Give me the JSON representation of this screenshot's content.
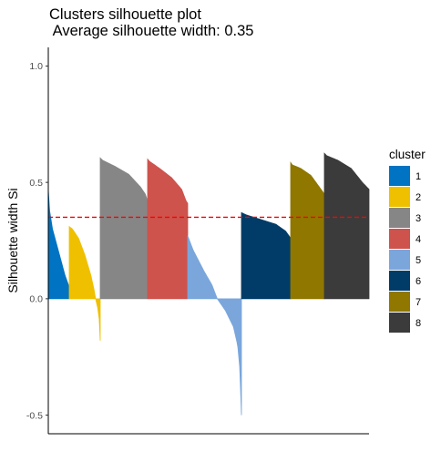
{
  "chart_data": {
    "type": "area",
    "title": "Clusters silhouette plot",
    "subtitle": " Average silhouette width: 0.35",
    "ylabel": "Silhouette width Si",
    "xlabel": "",
    "ylim": [
      -0.58,
      1.08
    ],
    "yticks": [
      {
        "value": 1.0,
        "label": "1.0"
      },
      {
        "value": 0.5,
        "label": "0.5"
      },
      {
        "value": 0.0,
        "label": "0.0"
      },
      {
        "value": -0.5,
        "label": "-0.5"
      }
    ],
    "average_silhouette_width": 0.35,
    "average_line_color": "#FF0000",
    "grid": false,
    "legend": {
      "title": "cluster",
      "position": "right"
    },
    "series": [
      {
        "name": "1",
        "color": "#0073C2",
        "profile": [
          [
            0,
            0.47
          ],
          [
            0.06,
            0.38
          ],
          [
            0.2,
            0.3
          ],
          [
            0.5,
            0.2
          ],
          [
            0.8,
            0.1
          ],
          [
            1,
            0.05
          ]
        ]
      },
      {
        "name": "2",
        "color": "#EFC000",
        "profile": [
          [
            0,
            0.31
          ],
          [
            0.1,
            0.3
          ],
          [
            0.3,
            0.26
          ],
          [
            0.5,
            0.19
          ],
          [
            0.7,
            0.1
          ],
          [
            0.8,
            0.04
          ],
          [
            0.85,
            0.0
          ],
          [
            0.92,
            -0.04
          ],
          [
            0.97,
            -0.09
          ],
          [
            1,
            -0.18
          ]
        ]
      },
      {
        "name": "3",
        "color": "#868686",
        "profile": [
          [
            0,
            0.605
          ],
          [
            0.05,
            0.595
          ],
          [
            0.3,
            0.57
          ],
          [
            0.6,
            0.535
          ],
          [
            0.85,
            0.48
          ],
          [
            0.95,
            0.45
          ],
          [
            1,
            0.42
          ]
        ]
      },
      {
        "name": "4",
        "color": "#CD534C",
        "profile": [
          [
            0,
            0.6
          ],
          [
            0.05,
            0.59
          ],
          [
            0.3,
            0.56
          ],
          [
            0.6,
            0.52
          ],
          [
            0.85,
            0.47
          ],
          [
            0.96,
            0.42
          ],
          [
            1,
            0.41
          ]
        ]
      },
      {
        "name": "5",
        "color": "#7AA6DC",
        "profile": [
          [
            0,
            0.27
          ],
          [
            0.1,
            0.21
          ],
          [
            0.3,
            0.12
          ],
          [
            0.45,
            0.06
          ],
          [
            0.55,
            0.0
          ],
          [
            0.7,
            -0.05
          ],
          [
            0.85,
            -0.12
          ],
          [
            0.93,
            -0.2
          ],
          [
            0.97,
            -0.3
          ],
          [
            1,
            -0.5
          ]
        ]
      },
      {
        "name": "6",
        "color": "#003C67",
        "profile": [
          [
            0,
            0.37
          ],
          [
            0.1,
            0.36
          ],
          [
            0.4,
            0.34
          ],
          [
            0.7,
            0.32
          ],
          [
            0.9,
            0.29
          ],
          [
            1,
            0.26
          ]
        ]
      },
      {
        "name": "7",
        "color": "#8F7700",
        "profile": [
          [
            0,
            0.585
          ],
          [
            0.05,
            0.575
          ],
          [
            0.3,
            0.56
          ],
          [
            0.6,
            0.53
          ],
          [
            0.85,
            0.48
          ],
          [
            1,
            0.45
          ]
        ]
      },
      {
        "name": "8",
        "color": "#3B3B3B",
        "profile": [
          [
            0,
            0.625
          ],
          [
            0.05,
            0.615
          ],
          [
            0.3,
            0.595
          ],
          [
            0.6,
            0.56
          ],
          [
            0.85,
            0.5
          ],
          [
            1,
            0.47
          ]
        ]
      }
    ]
  }
}
